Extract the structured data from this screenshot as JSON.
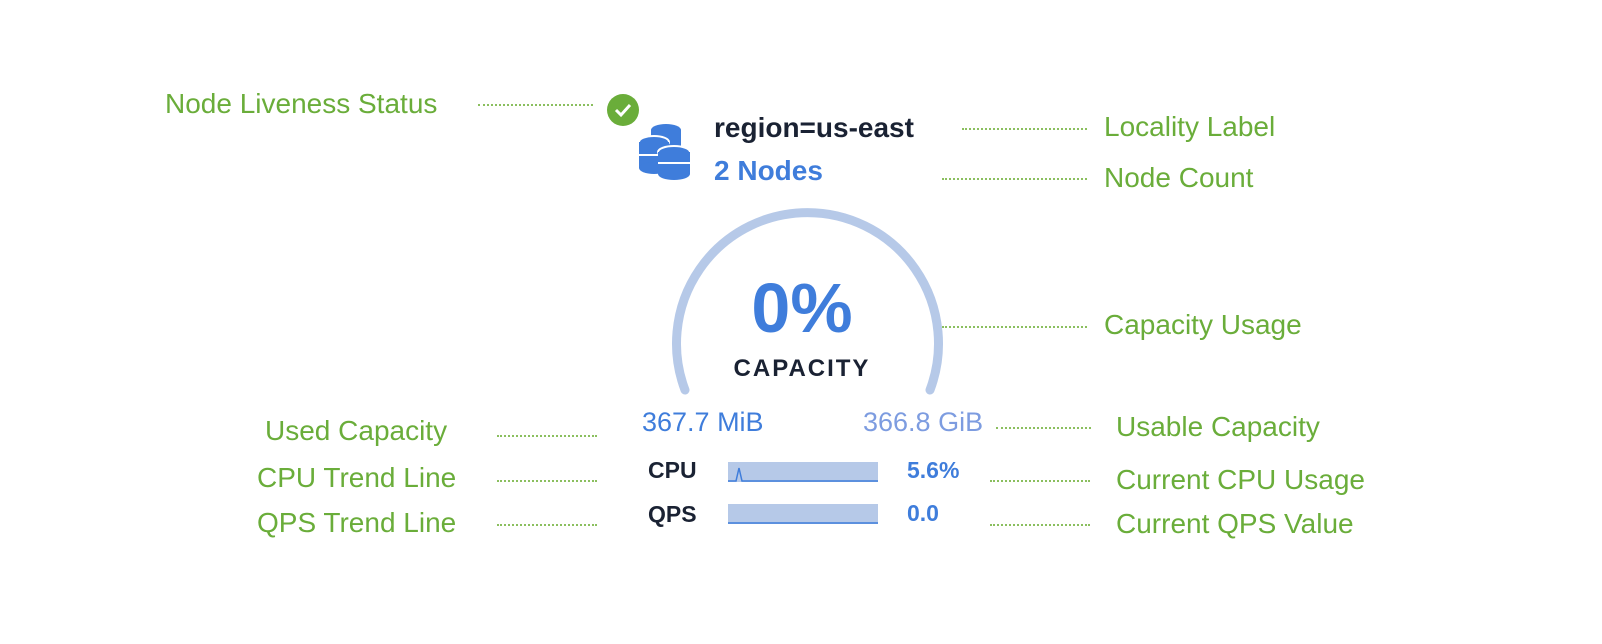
{
  "annotations": {
    "liveness": "Node Liveness Status",
    "locality": "Locality Label",
    "node_count": "Node Count",
    "capacity_usage": "Capacity Usage",
    "used_capacity": "Used Capacity",
    "usable_capacity": "Usable Capacity",
    "cpu_trend": "CPU Trend Line",
    "current_cpu": "Current CPU Usage",
    "qps_trend": "QPS Trend Line",
    "current_qps": "Current QPS Value"
  },
  "widget": {
    "locality": "region=us-east",
    "node_count": "2 Nodes",
    "liveness_icon": "check-circle-icon",
    "capacity_percent": "0%",
    "capacity_label": "CAPACITY",
    "used": "367.7 MiB",
    "usable": "366.8 GiB",
    "cpu_label": "CPU",
    "cpu_value": "5.6%",
    "qps_label": "QPS",
    "qps_value": "0.0"
  },
  "colors": {
    "annotation": "#6aad3a",
    "accent": "#3b78dc",
    "gauge": "#b6c9e8",
    "liveness": "#6aad3a"
  }
}
